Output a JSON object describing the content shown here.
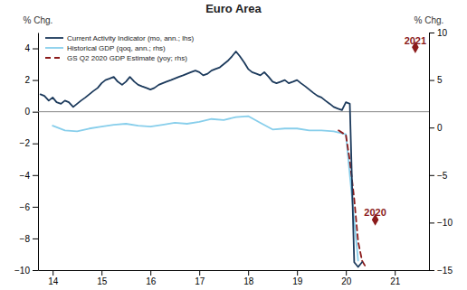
{
  "chart_data": {
    "type": "line",
    "title": "Euro Area",
    "ylabel": "% Chg.",
    "y2label": "% Chg.",
    "xlim": [
      13.7,
      21.7
    ],
    "xticks": [
      14,
      15,
      16,
      17,
      18,
      19,
      20,
      21
    ],
    "ylim": [
      -10.0,
      5.0
    ],
    "yticks": [
      -10,
      -8,
      -6,
      -4,
      -2,
      0,
      2,
      4
    ],
    "y2lim": [
      -15.0,
      10.0
    ],
    "y2ticks": [
      -15.0,
      -10.0,
      -5.0,
      0.0,
      5.0,
      10.0
    ],
    "grid": false,
    "legend": "upper left",
    "series": [
      {
        "name": "Current Activity Indicator (mo, ann.; lhs)",
        "color": "#1c3a5c",
        "axis": "y",
        "line_style": "solid",
        "x": [
          13.75,
          13.83,
          13.92,
          14.0,
          14.08,
          14.17,
          14.25,
          14.33,
          14.42,
          14.5,
          14.58,
          14.67,
          14.75,
          14.83,
          14.92,
          15.0,
          15.08,
          15.17,
          15.25,
          15.33,
          15.42,
          15.5,
          15.58,
          15.67,
          15.75,
          15.83,
          15.92,
          16.0,
          16.08,
          16.17,
          16.25,
          16.33,
          16.42,
          16.5,
          16.58,
          16.67,
          16.75,
          16.83,
          16.92,
          17.0,
          17.08,
          17.17,
          17.25,
          17.33,
          17.42,
          17.5,
          17.58,
          17.67,
          17.75,
          17.83,
          17.92,
          18.0,
          18.08,
          18.17,
          18.25,
          18.33,
          18.42,
          18.5,
          18.58,
          18.67,
          18.75,
          18.83,
          18.92,
          19.0,
          19.08,
          19.17,
          19.25,
          19.33,
          19.42,
          19.5,
          19.58,
          19.67,
          19.75,
          19.83,
          19.92,
          20.0,
          20.08,
          20.17,
          20.25,
          20.33
        ],
        "values": [
          1.1,
          1.0,
          0.7,
          0.9,
          0.6,
          0.5,
          0.7,
          0.6,
          0.3,
          0.5,
          0.7,
          0.9,
          1.1,
          1.3,
          1.5,
          1.8,
          2.0,
          2.1,
          2.2,
          1.9,
          1.7,
          1.9,
          2.2,
          1.9,
          1.7,
          1.6,
          1.5,
          1.4,
          1.5,
          1.7,
          1.8,
          1.9,
          2.0,
          2.1,
          2.2,
          2.3,
          2.4,
          2.5,
          2.6,
          2.5,
          2.3,
          2.4,
          2.6,
          2.7,
          2.8,
          3.0,
          3.2,
          3.5,
          3.8,
          3.5,
          3.1,
          2.7,
          2.5,
          2.4,
          2.3,
          2.5,
          2.2,
          1.9,
          1.8,
          1.9,
          2.0,
          1.8,
          1.9,
          2.0,
          1.8,
          1.6,
          1.4,
          1.2,
          1.0,
          0.9,
          0.7,
          0.5,
          0.3,
          0.2,
          0.1,
          0.6,
          0.5,
          -9.5,
          -9.8,
          -9.5
        ]
      },
      {
        "name": "Historical GDP (qoq, ann.; rhs)",
        "color": "#87CEEB",
        "axis": "y2",
        "line_style": "solid",
        "x": [
          14.0,
          14.25,
          14.5,
          14.75,
          15.0,
          15.25,
          15.5,
          15.75,
          16.0,
          16.25,
          16.5,
          16.75,
          17.0,
          17.25,
          17.5,
          17.75,
          18.0,
          18.25,
          18.5,
          18.75,
          19.0,
          19.25,
          19.5,
          19.75,
          20.0,
          20.25
        ],
        "values": [
          0.2,
          -0.3,
          -0.4,
          -0.1,
          0.1,
          0.3,
          0.4,
          0.2,
          0.1,
          0.3,
          0.5,
          0.4,
          0.6,
          0.9,
          0.8,
          1.1,
          1.2,
          0.5,
          -0.2,
          -0.1,
          -0.1,
          -0.3,
          -0.3,
          -0.4,
          -0.7,
          -14.0
        ]
      },
      {
        "name": "GS Q2 2020 GDP Estimate (yoy; rhs)",
        "color": "#8b1a1a",
        "axis": "y2",
        "line_style": "dashed",
        "x": [
          19.85,
          20.0,
          20.08,
          20.17,
          20.25,
          20.33,
          20.42
        ],
        "values": [
          -0.3,
          -0.8,
          -3.5,
          -7.5,
          -12.0,
          -14.0,
          -14.8
        ]
      }
    ],
    "zero_line": {
      "value": 0,
      "color": "#888888"
    },
    "annotations": [
      {
        "text": "2020",
        "x": 20.6,
        "y": -9.3,
        "axis": "y2",
        "color": "#8b1a1a",
        "marker": "diamond",
        "marker_x": 20.6,
        "marker_y": -9.7
      },
      {
        "text": "2021",
        "x": 21.42,
        "y": 8.8,
        "axis": "y2",
        "color": "#8b1a1a",
        "marker": "diamond",
        "marker_x": 21.42,
        "marker_y": 8.45
      }
    ]
  }
}
